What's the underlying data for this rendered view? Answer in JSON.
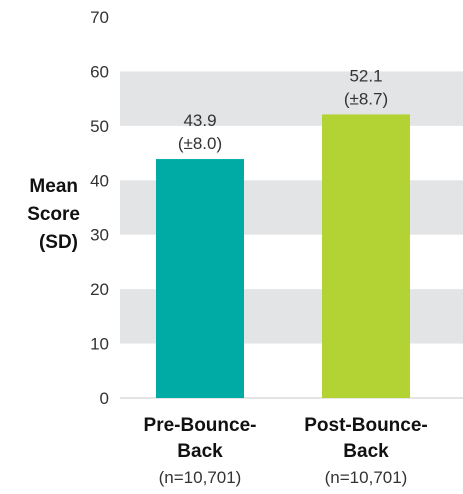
{
  "chart_data": {
    "type": "bar",
    "ylabel": [
      "Mean",
      "Score",
      "(SD)"
    ],
    "ylim": [
      0,
      70
    ],
    "yticks": [
      0,
      10,
      20,
      30,
      40,
      50,
      60,
      70
    ],
    "grid": "alternating horizontal bands",
    "categories": [
      {
        "name_lines": [
          "Pre-Bounce-",
          "Back"
        ],
        "n": "(n=10,701)"
      },
      {
        "name_lines": [
          "Post-Bounce-",
          "Back"
        ],
        "n": "(n=10,701)"
      }
    ],
    "values": [
      43.9,
      52.1
    ],
    "value_labels": [
      "43.9",
      "52.1"
    ],
    "sd_labels": [
      "(±8.0)",
      "(±8.7)"
    ],
    "colors": [
      "#00ABA6",
      "#B3D335"
    ],
    "band_color": "#E3E4E6"
  }
}
